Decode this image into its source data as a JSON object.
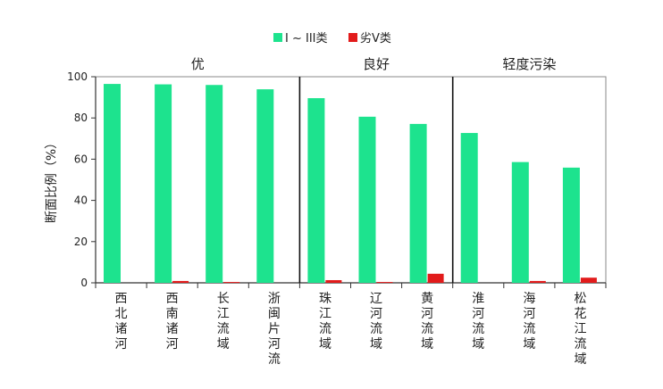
{
  "chart_data": {
    "type": "bar",
    "ylabel": "断面比例（%）",
    "ylim": [
      0,
      100
    ],
    "yticks": [
      0,
      20,
      40,
      60,
      80,
      100
    ],
    "grid": false,
    "legend_position": "top",
    "categories": [
      "西北诸河",
      "西南诸河",
      "长江流域",
      "浙闽片河流",
      "珠江流域",
      "辽河流域",
      "黄河流域",
      "淮河流域",
      "海河流域",
      "松花江流域"
    ],
    "series": [
      {
        "name": "I ~ III类",
        "color": "#1de38e",
        "values": [
          96.5,
          96.3,
          96.0,
          93.9,
          89.6,
          80.6,
          77.1,
          72.7,
          58.6,
          55.9
        ]
      },
      {
        "name": "劣V类",
        "color": "#e21b1b",
        "values": [
          0,
          0.9,
          0.4,
          0,
          1.3,
          0.4,
          4.4,
          0,
          0.9,
          2.5
        ]
      }
    ],
    "groups": [
      {
        "label": "优",
        "from": 0,
        "to": 3
      },
      {
        "label": "良好",
        "from": 4,
        "to": 6
      },
      {
        "label": "轻度污染",
        "from": 7,
        "to": 9
      }
    ]
  }
}
